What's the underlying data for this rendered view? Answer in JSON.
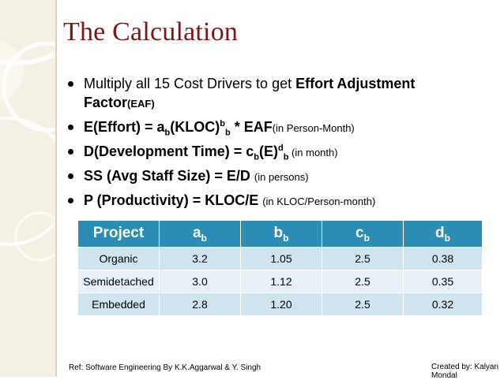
{
  "slide": {
    "title": "The Calculation",
    "bullets": [
      {
        "text": "Multiply all 15 Cost Drivers to get ",
        "bold_term": "Effort Adjustment Factor",
        "abbr": "(EAF)"
      },
      {
        "lhs": "E(Effort) = a",
        "sub1": "b",
        "mid": "(KLOC)",
        "sup1": "b",
        "sub2": "b",
        "rhs": " * EAF",
        "note": "(in Person-Month)"
      },
      {
        "lhs": "D(Development Time) = c",
        "sub1": "b",
        "mid": "(E)",
        "sup1": "d",
        "sub2": "b",
        "note": " (in month)"
      },
      {
        "text": "SS (Avg Staff Size) = E/D ",
        "note": "(in persons)"
      },
      {
        "text": "P (Productivity) = KLOC/E ",
        "note": "(in KLOC/Person-month)"
      }
    ]
  },
  "table": {
    "headers": [
      {
        "main": "Project",
        "sub": ""
      },
      {
        "main": "a",
        "sub": "b"
      },
      {
        "main": "b",
        "sub": "b"
      },
      {
        "main": "c",
        "sub": "b"
      },
      {
        "main": "d",
        "sub": "b"
      }
    ],
    "rows": [
      [
        "Organic",
        "3.2",
        "1.05",
        "2.5",
        "0.38"
      ],
      [
        "Semidetached",
        "3.0",
        "1.12",
        "2.5",
        "0.35"
      ],
      [
        "Embedded",
        "2.8",
        "1.20",
        "2.5",
        "0.32"
      ]
    ]
  },
  "footer": {
    "ref": "Ref: Software Engineering By K.K.Aggarwal & Y. Singh",
    "created": "Created by: Kalyan Mondal"
  },
  "colors": {
    "title": "#7b1717",
    "table_header": "#2b8db5",
    "row_odd": "#cfe4ef",
    "row_even": "#e8f1f7",
    "side_panel": "#f4f1e4"
  }
}
